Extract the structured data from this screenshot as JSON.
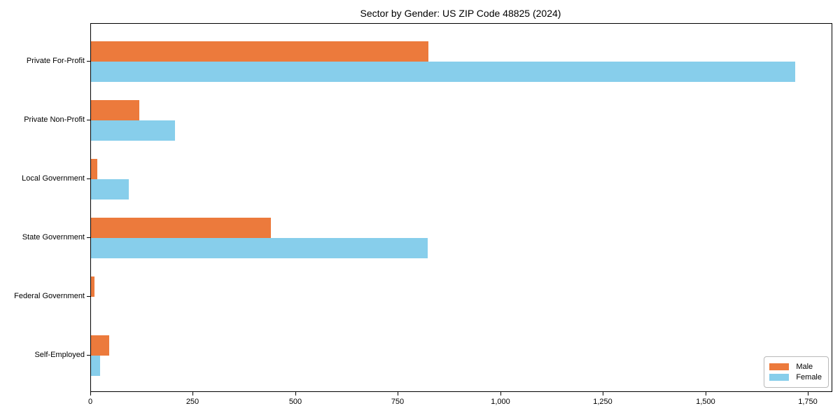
{
  "page": {
    "background": "#ffffff",
    "accent_colors": {
      "male": "#EC7A3C",
      "female": "#87CEEB",
      "axis": "#000000",
      "legend_border": "#b9b9b9"
    }
  },
  "chart_data": {
    "type": "bar",
    "orientation": "horizontal",
    "title": "Sector by Gender: US ZIP Code 48825 (2024)",
    "xlabel": "",
    "ylabel": "",
    "grid": false,
    "categories": [
      "Private For-Profit",
      "Private Non-Profit",
      "Local Government",
      "State Government",
      "Federal Government",
      "Self-Employed"
    ],
    "series": [
      {
        "name": "Male",
        "color": "#EC7A3C",
        "values": [
          823,
          117,
          16,
          439,
          9,
          45
        ]
      },
      {
        "name": "Female",
        "color": "#87CEEB",
        "values": [
          1717,
          205,
          92,
          821,
          0,
          22
        ]
      }
    ],
    "xticks": [
      0,
      250,
      500,
      750,
      1000,
      1250,
      1500,
      1750
    ],
    "xtick_labels": [
      "0",
      "250",
      "500",
      "750",
      "1,000",
      "1,250",
      "1,500",
      "1,750"
    ],
    "xlim": [
      0,
      1806
    ],
    "legend": {
      "position": "lower right",
      "entries": [
        "Male",
        "Female"
      ]
    }
  }
}
